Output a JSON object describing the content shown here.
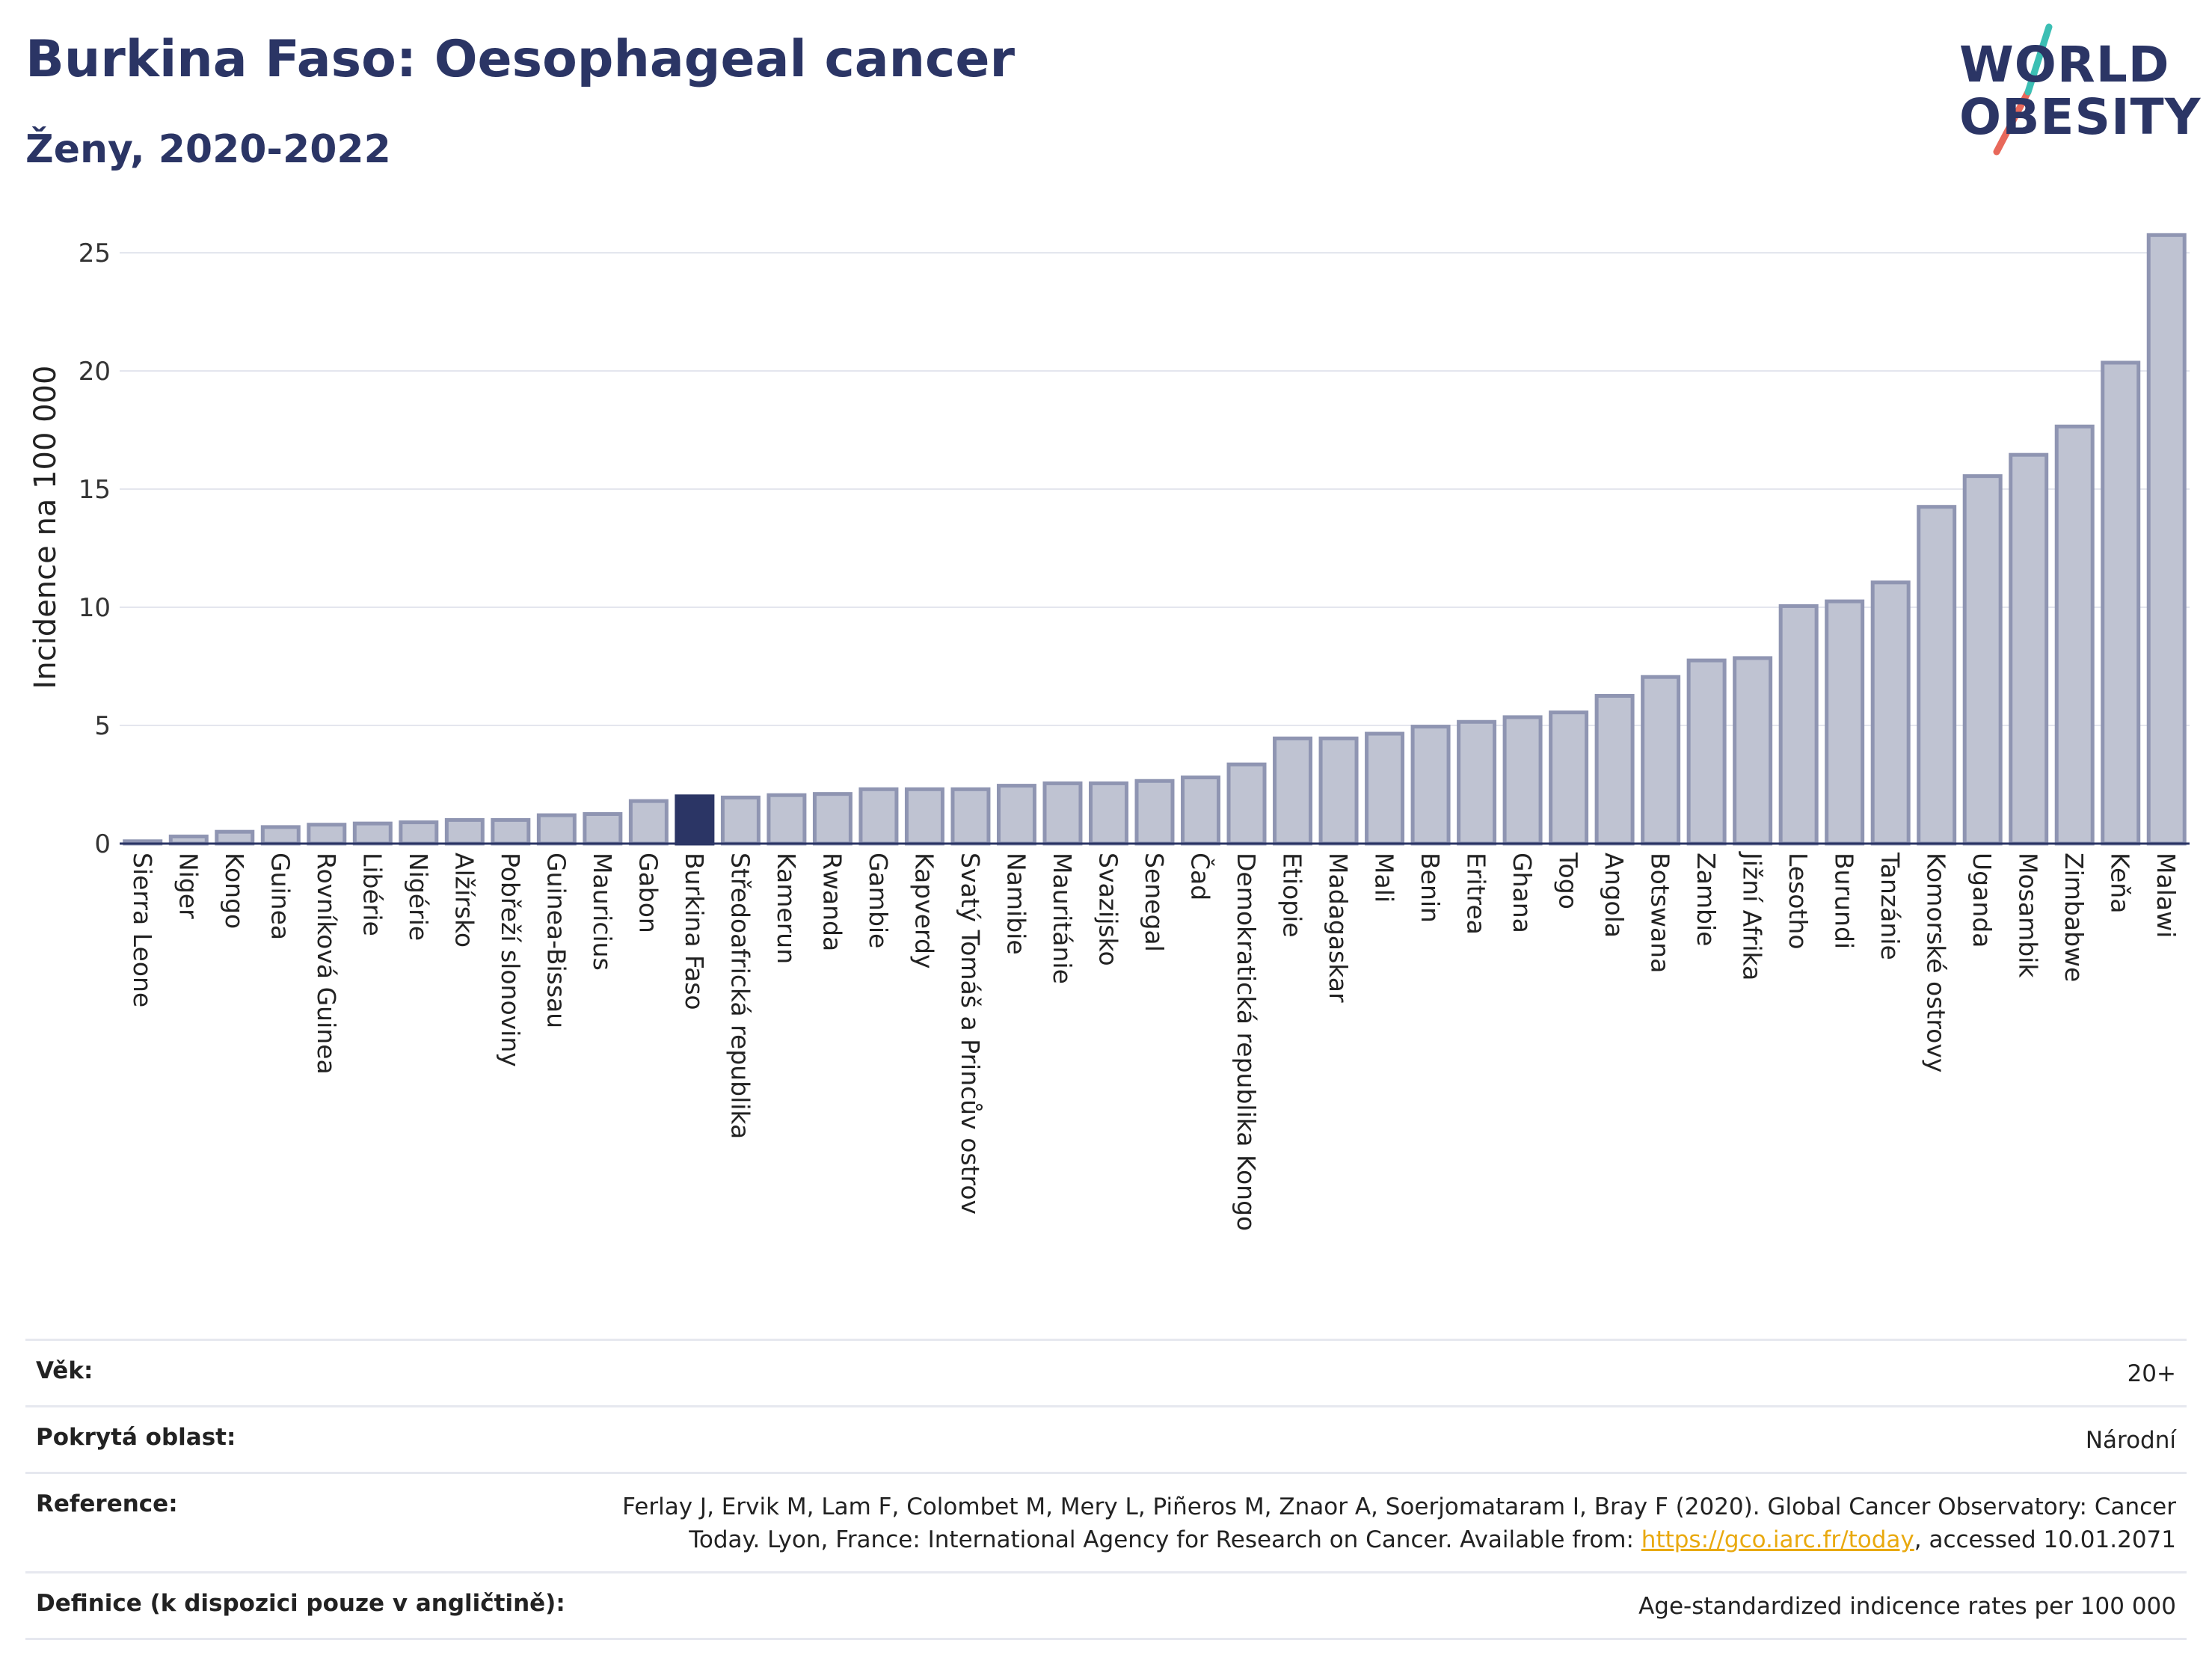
{
  "header": {
    "title": "Burkina Faso: Oesophageal cancer",
    "subtitle": "Ženy, 2020-2022"
  },
  "logo": {
    "line1": "WORLD",
    "line2": "OBESITY",
    "text_color": "#2b3565",
    "accent_colors": [
      "#e8685a",
      "#3cbfb4"
    ]
  },
  "colors": {
    "bar_fill": "#bfc3d2",
    "bar_stroke": "#8f95b2",
    "highlight_fill": "#2b3565",
    "grid": "#e4e6ee"
  },
  "chart_data": {
    "type": "bar",
    "title": "Burkina Faso: Oesophageal cancer",
    "subtitle": "Ženy, 2020-2022",
    "xlabel": "",
    "ylabel": "Incidence na 100 000",
    "ylim": [
      0,
      26
    ],
    "yticks": [
      0,
      5,
      10,
      15,
      20,
      25
    ],
    "grid": true,
    "highlight": "Burkina Faso",
    "categories": [
      "Sierra Leone",
      "Niger",
      "Kongo",
      "Guinea",
      "Rovníková Guinea",
      "Libérie",
      "Nigérie",
      "Alžírsko",
      "Pobřeží slonoviny",
      "Guinea-Bissau",
      "Mauricius",
      "Gabon",
      "Burkina Faso",
      "Středoafrická republika",
      "Kamerun",
      "Rwanda",
      "Gambie",
      "Kapverdy",
      "Svatý Tomáš a Princův ostrov",
      "Namibie",
      "Mauritánie",
      "Svazijsko",
      "Senegal",
      "Čad",
      "Demokratická republika Kongo",
      "Etiopie",
      "Madagaskar",
      "Mali",
      "Benin",
      "Eritrea",
      "Ghana",
      "Togo",
      "Angola",
      "Botswana",
      "Zambie",
      "Jižní Afrika",
      "Lesotho",
      "Burundi",
      "Tanzánie",
      "Komorské ostrovy",
      "Uganda",
      "Mosambik",
      "Zimbabwe",
      "Keňa",
      "Malawi"
    ],
    "values": [
      0.1,
      0.3,
      0.5,
      0.7,
      0.8,
      0.85,
      0.9,
      1.0,
      1.0,
      1.2,
      1.25,
      1.8,
      2.0,
      1.95,
      2.05,
      2.1,
      2.3,
      2.3,
      2.3,
      2.45,
      2.55,
      2.55,
      2.65,
      2.8,
      3.35,
      4.45,
      4.45,
      4.65,
      4.95,
      5.15,
      5.35,
      5.55,
      6.25,
      7.05,
      7.75,
      7.85,
      10.05,
      10.25,
      11.05,
      14.25,
      15.55,
      16.45,
      17.65,
      20.35,
      25.75
    ]
  },
  "info": {
    "rows": [
      {
        "key": "Věk:",
        "value": "20+"
      },
      {
        "key": "Pokrytá oblast:",
        "value": "Národní"
      },
      {
        "key": "Reference:",
        "value_line1": "Ferlay J, Ervik M, Lam F, Colombet M, Mery L, Piñeros M, Znaor A, Soerjomataram I, Bray F (2020). Global Cancer Observatory: Cancer",
        "value_line2_pre": "Today. Lyon, France: International Agency for Research on Cancer. Available from: ",
        "value_link": "https://gco.iarc.fr/today",
        "value_line2_post": ", accessed 10.01.2071"
      },
      {
        "key": "Definice (k dispozici pouze v angličtině):",
        "value": "Age-standardized indicence rates per 100 000"
      }
    ]
  }
}
